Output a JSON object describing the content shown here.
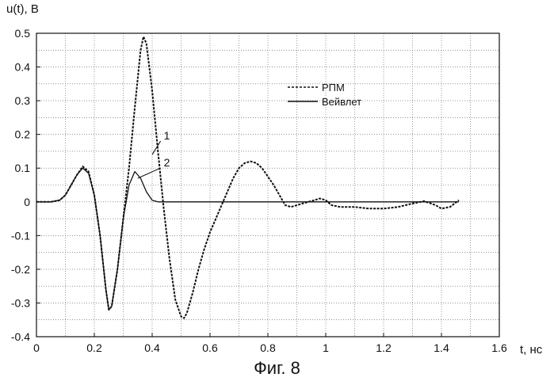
{
  "figure": {
    "caption": "Фиг. 8"
  },
  "chart_data": {
    "type": "line",
    "title": "",
    "xlabel": "t, нс",
    "ylabel": "u(t), В",
    "xlim": [
      0,
      1.6
    ],
    "ylim": [
      -0.4,
      0.5
    ],
    "grid": true,
    "x_ticks": [
      0,
      0.2,
      0.4,
      0.6,
      0.8,
      1,
      1.2,
      1.4,
      1.6
    ],
    "x_tick_labels": [
      "0",
      "0.2",
      "0.4",
      "0.6",
      "0.8",
      "1",
      "1.2",
      "1.4",
      "1.6"
    ],
    "y_ticks": [
      0.5,
      0.4,
      0.3,
      0.2,
      0.1,
      0,
      -0.1,
      -0.2,
      -0.3,
      -0.4
    ],
    "y_tick_labels": [
      "0.5",
      "0.4",
      "0.3",
      "0.2",
      "0.1",
      "0",
      "-0.1",
      "-0.2",
      "-0.3",
      "-0.4"
    ],
    "legend_position": "top-right",
    "series": [
      {
        "name": "РПМ",
        "style": "dashed",
        "x": [
          0,
          0.02,
          0.05,
          0.08,
          0.1,
          0.12,
          0.14,
          0.16,
          0.18,
          0.2,
          0.22,
          0.24,
          0.25,
          0.26,
          0.28,
          0.3,
          0.32,
          0.34,
          0.36,
          0.37,
          0.38,
          0.4,
          0.42,
          0.44,
          0.46,
          0.48,
          0.5,
          0.51,
          0.52,
          0.54,
          0.56,
          0.58,
          0.6,
          0.62,
          0.64,
          0.66,
          0.68,
          0.7,
          0.72,
          0.74,
          0.76,
          0.78,
          0.8,
          0.82,
          0.84,
          0.86,
          0.88,
          0.9,
          0.92,
          0.94,
          0.96,
          0.98,
          1.0,
          1.02,
          1.05,
          1.1,
          1.15,
          1.2,
          1.25,
          1.3,
          1.34,
          1.38,
          1.4,
          1.43,
          1.46
        ],
        "y": [
          0,
          0,
          0,
          0.005,
          0.02,
          0.05,
          0.08,
          0.105,
          0.09,
          0.02,
          -0.1,
          -0.26,
          -0.32,
          -0.31,
          -0.2,
          -0.05,
          0.1,
          0.28,
          0.45,
          0.49,
          0.47,
          0.33,
          0.15,
          -0.02,
          -0.17,
          -0.29,
          -0.34,
          -0.345,
          -0.33,
          -0.27,
          -0.2,
          -0.14,
          -0.09,
          -0.05,
          -0.01,
          0.03,
          0.07,
          0.1,
          0.115,
          0.12,
          0.115,
          0.1,
          0.075,
          0.05,
          0.02,
          -0.01,
          -0.015,
          -0.01,
          -0.005,
          0,
          0.005,
          0.01,
          0.005,
          -0.01,
          -0.015,
          -0.015,
          -0.02,
          -0.02,
          -0.015,
          -0.005,
          0.002,
          -0.01,
          -0.02,
          -0.015,
          0.005
        ]
      },
      {
        "name": "Вейвлет",
        "style": "solid",
        "x": [
          0,
          0.02,
          0.05,
          0.08,
          0.1,
          0.12,
          0.14,
          0.16,
          0.18,
          0.2,
          0.22,
          0.24,
          0.25,
          0.26,
          0.28,
          0.3,
          0.32,
          0.34,
          0.36,
          0.38,
          0.4,
          0.42,
          0.45,
          0.5,
          0.6,
          0.8,
          1.0,
          1.2,
          1.4,
          1.46
        ],
        "y": [
          0,
          0,
          0,
          0.005,
          0.02,
          0.05,
          0.08,
          0.1,
          0.085,
          0.02,
          -0.1,
          -0.26,
          -0.32,
          -0.31,
          -0.2,
          -0.05,
          0.05,
          0.09,
          0.07,
          0.03,
          0.005,
          0,
          0,
          0,
          0,
          0,
          0,
          0,
          0,
          0
        ]
      }
    ],
    "annotations": [
      {
        "label": "1",
        "x": 0.44,
        "y": 0.185,
        "target_x": 0.4,
        "target_y": 0.14
      },
      {
        "label": "2",
        "x": 0.44,
        "y": 0.105,
        "target_x": 0.35,
        "target_y": 0.07
      }
    ]
  }
}
